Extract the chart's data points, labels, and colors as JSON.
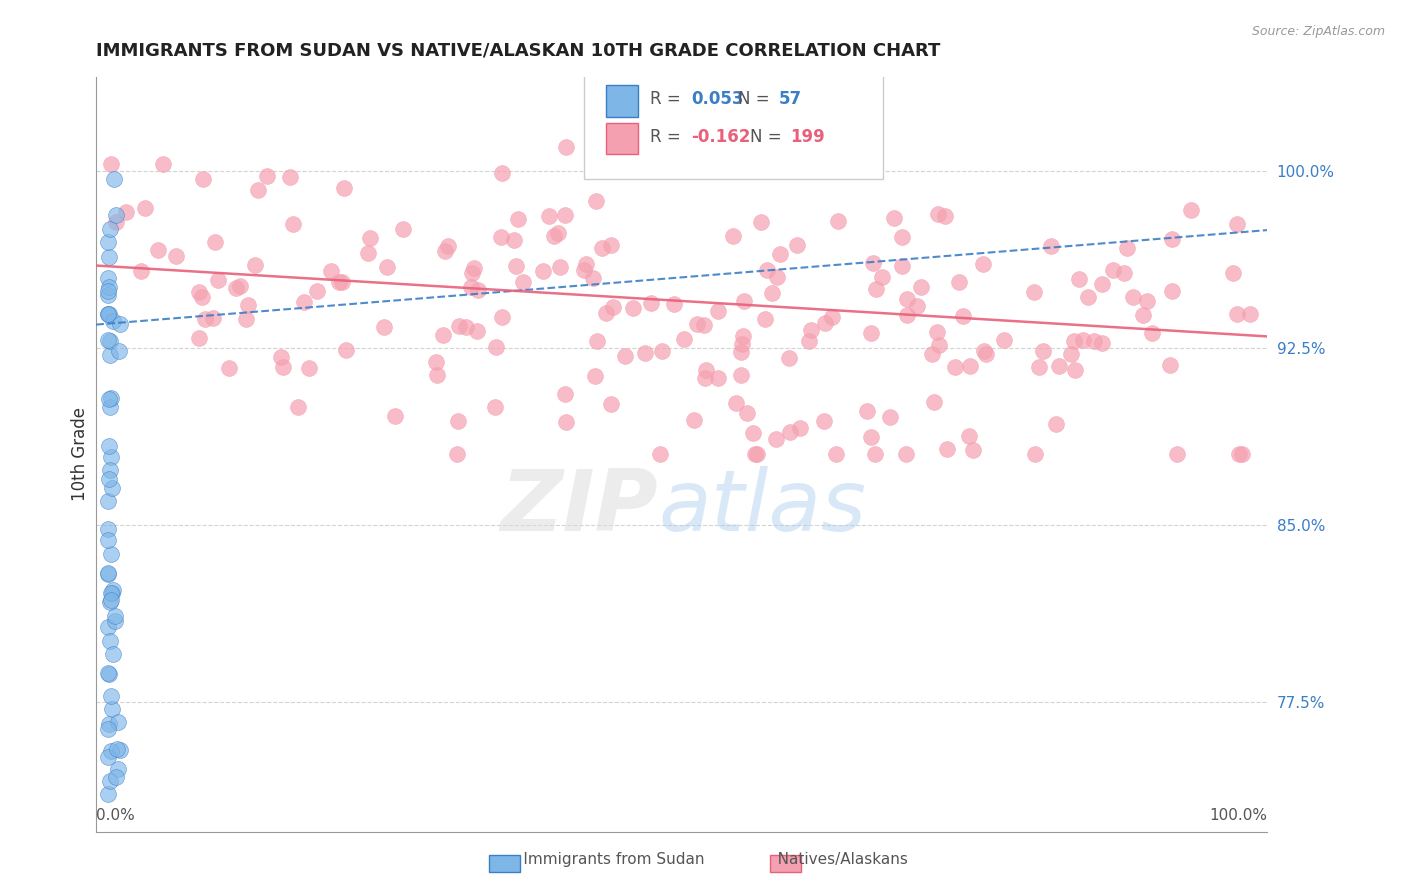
{
  "title": "IMMIGRANTS FROM SUDAN VS NATIVE/ALASKAN 10TH GRADE CORRELATION CHART",
  "source": "Source: ZipAtlas.com",
  "ylabel": "10th Grade",
  "ylabel_ticks": [
    0.775,
    0.85,
    0.925,
    1.0
  ],
  "ylabel_tick_labels": [
    "77.5%",
    "85.0%",
    "92.5%",
    "100.0%"
  ],
  "xlim": [
    0.0,
    1.0
  ],
  "ylim": [
    0.72,
    1.04
  ],
  "legend_R1": "0.053",
  "legend_N1": "57",
  "legend_R2": "-0.162",
  "legend_N2": "199",
  "color_blue": "#7EB6E8",
  "color_blue_dark": "#3A7EC6",
  "color_pink": "#F5A0B0",
  "color_pink_dark": "#E8607A",
  "color_grid": "#C8C8C8",
  "color_source": "#999999",
  "blue_trend": [
    0.935,
    0.975
  ],
  "pink_trend": [
    0.96,
    0.93
  ]
}
